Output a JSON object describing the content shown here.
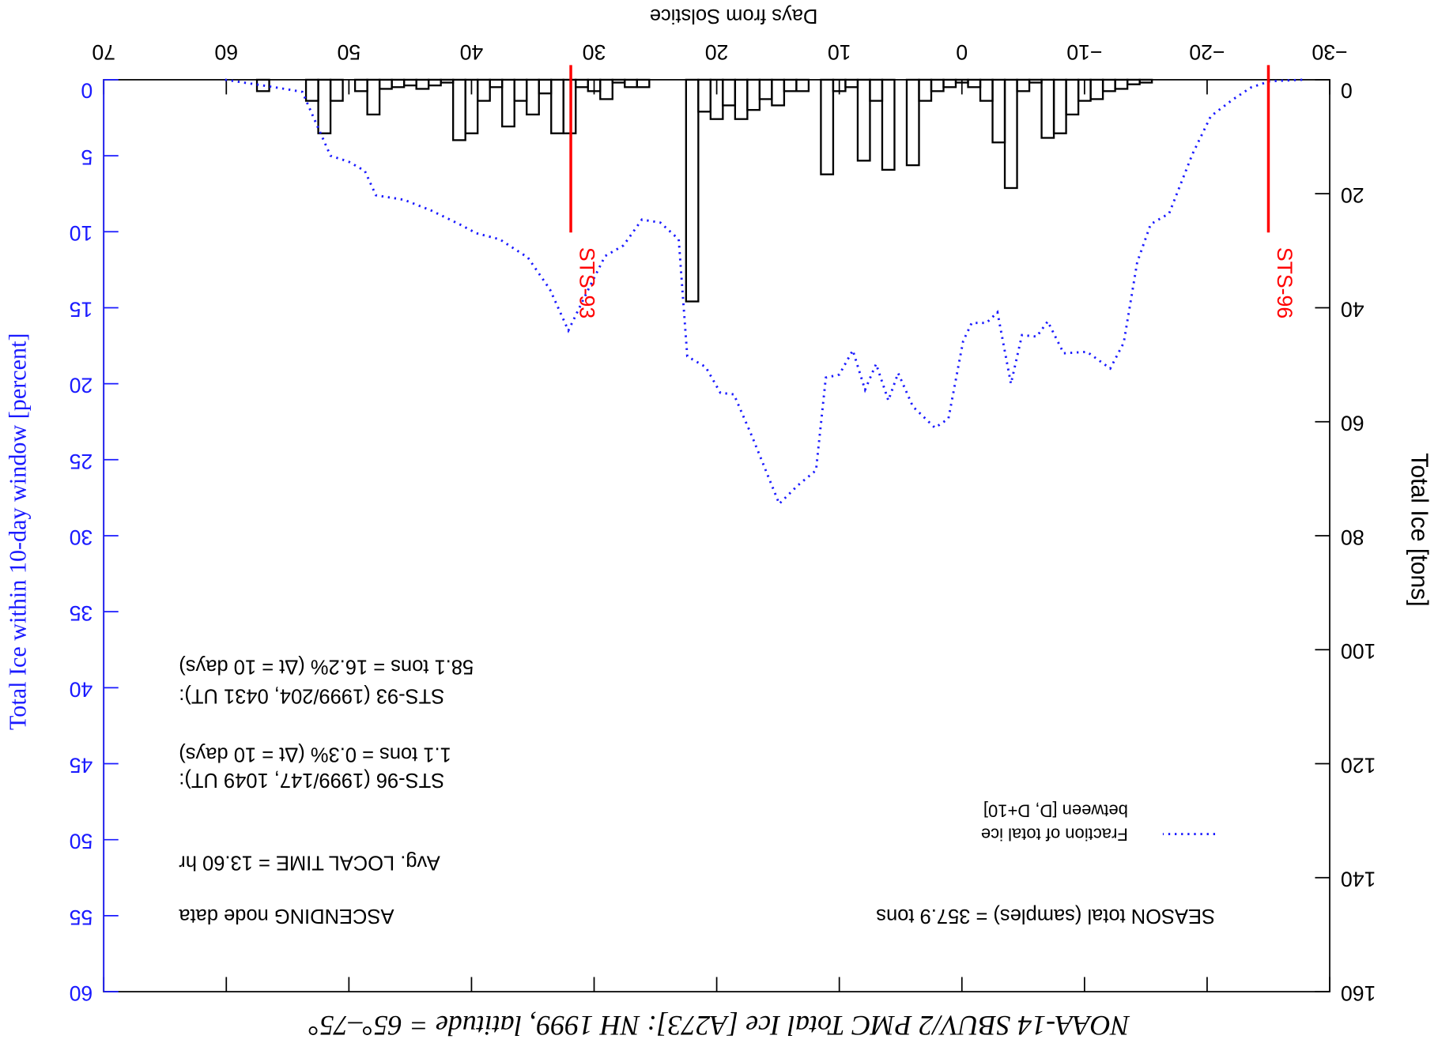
{
  "chart_data": {
    "type": "histogram",
    "title": "NOAA-14 SBUV/2 PMC Total Ice [A273]:  NH 1999, latitude = 65°–75°",
    "x_label": "Days from Solstice",
    "y_label": "Total Ice [tons]",
    "y2_label": "Total Ice within 10-day window [percent]",
    "color": "#000000",
    "bins": [
      -15.5,
      -14.5,
      -13.5,
      -12.5,
      -11.5,
      -10.5,
      -9.5,
      -8.5,
      -7.5,
      -6.5,
      -5.5,
      -4.5,
      -3.5,
      -2.5,
      -1.5,
      -0.5,
      0.5,
      1.5,
      2.5,
      3.5,
      4.5,
      5.5,
      6.5,
      7.5,
      8.5,
      9.5,
      10.5,
      11.5,
      12.5,
      13.5,
      14.5,
      15.5,
      16.5,
      17.5,
      18.5,
      19.5,
      20.5,
      21.5,
      22.5,
      23.5,
      24.5,
      25.5,
      26.5,
      27.5,
      28.5,
      29.5,
      30.5,
      31.5,
      32.5,
      33.5,
      34.5,
      35.5,
      36.5,
      37.5,
      38.5,
      39.5,
      40.5,
      41.5,
      42.5,
      43.5,
      44.5,
      45.5,
      46.5,
      47.5,
      48.5,
      49.5,
      50.5,
      51.5,
      52.5,
      53.5,
      54.5,
      55.5,
      56.5,
      57.5
    ],
    "values": [
      0.5,
      0.8,
      1.6,
      2,
      3.4,
      3.7,
      6.1,
      9.4,
      10.2,
      0.5,
      2,
      19,
      11,
      3.7,
      1.3,
      0.5,
      1.3,
      2,
      3.7,
      15,
      0,
      15.8,
      3.7,
      14.2,
      1.3,
      2,
      16.6,
      0,
      2,
      2,
      4.5,
      3.4,
      5.3,
      6.9,
      4.5,
      6.9,
      5.6,
      38.9,
      0,
      0,
      0,
      1.3,
      1.3,
      0.5,
      3.4,
      2,
      1.3,
      9.4,
      9.4,
      2.4,
      6.1,
      3.7,
      8.2,
      1.3,
      3.7,
      9.4,
      10.6,
      0.5,
      1,
      1.6,
      1,
      1.3,
      1.6,
      6.1,
      2,
      0,
      3.7,
      9.4,
      3.7,
      0,
      0,
      0,
      2
    ],
    "overlay": {
      "type": "line",
      "name": [
        "Fraction of total ice",
        "between [D, D+10]"
      ],
      "color": "#1a1aff",
      "axis": "y2",
      "x": [
        60.1,
        56,
        53.8,
        52.6,
        51.5,
        50,
        48.7,
        47.8,
        45.5,
        43.3,
        41,
        39.6,
        37.7,
        35.4,
        33.6,
        32.1,
        30.6,
        29.1,
        27.6,
        26.1,
        24.6,
        23.1,
        22.4,
        20.9,
        19.7,
        18.6,
        17.1,
        16,
        14.9,
        13.4,
        11.9,
        11.1,
        10,
        8.9,
        7.9,
        7,
        6,
        5.2,
        4,
        2.2,
        1.1,
        -0.1,
        -0.8,
        -2,
        -2.9,
        -4,
        -4.9,
        -6.1,
        -7,
        -8.3,
        -10.2,
        -12.1,
        -13.2,
        -14.3,
        -15.4,
        -16.9,
        -18.8,
        -20.3,
        -22.1,
        -23.6,
        -25.1,
        -27.8
      ],
      "values": [
        0,
        0.5,
        0.8,
        3,
        5,
        5.4,
        6,
        7.6,
        7.9,
        8.6,
        9.5,
        10.1,
        10.5,
        11.7,
        13.8,
        16.5,
        14,
        11.6,
        10.9,
        9.2,
        9.4,
        10.5,
        18.2,
        18.9,
        20.6,
        20.7,
        23.5,
        25.7,
        27.9,
        26.7,
        25.7,
        19.6,
        19.4,
        17.8,
        20.4,
        18.7,
        21.1,
        19.3,
        21.5,
        22.9,
        22.3,
        17.2,
        16,
        16,
        15.3,
        20,
        16.8,
        16.9,
        15.9,
        18,
        17.9,
        19,
        17.3,
        12,
        9.5,
        8.8,
        4.9,
        2.4,
        1.3,
        0.5,
        0.1,
        0
      ]
    },
    "events": [
      {
        "label": "STS-93",
        "x": 31.9,
        "top": 26.8
      },
      {
        "label": "STS-96",
        "x": -25,
        "top": 26.8
      }
    ],
    "event_color": "#ff0000",
    "annotations": [
      "SEASON total (samples) = 357.9 tons",
      "ASCENDING node data",
      "Avg. LOCAL TIME = 13.60 hr",
      "STS-96 (1999/147, 1049 UT):",
      "1.1 tons = 0.3% (Δt = 10 days)",
      "STS-93 (1999/204, 0431 UT):",
      "58.1 tons = 16.2% (Δt = 10 days)"
    ],
    "xlim": [
      -30,
      70
    ],
    "xticks": [
      {
        "value": -30,
        "label": "−30"
      },
      {
        "value": -20,
        "label": "−20"
      },
      {
        "value": -10,
        "label": "−10"
      },
      0,
      10,
      20,
      30,
      40,
      50,
      60,
      70
    ],
    "ylim": [
      0,
      160
    ],
    "yticks": [
      0,
      20,
      40,
      60,
      80,
      100,
      120,
      140,
      160
    ],
    "y2lim": [
      0,
      60
    ],
    "y2ticks": [
      0,
      5,
      10,
      15,
      20,
      25,
      30,
      35,
      40,
      45,
      50,
      55,
      60
    ],
    "y2_color": "#1a1aff"
  }
}
